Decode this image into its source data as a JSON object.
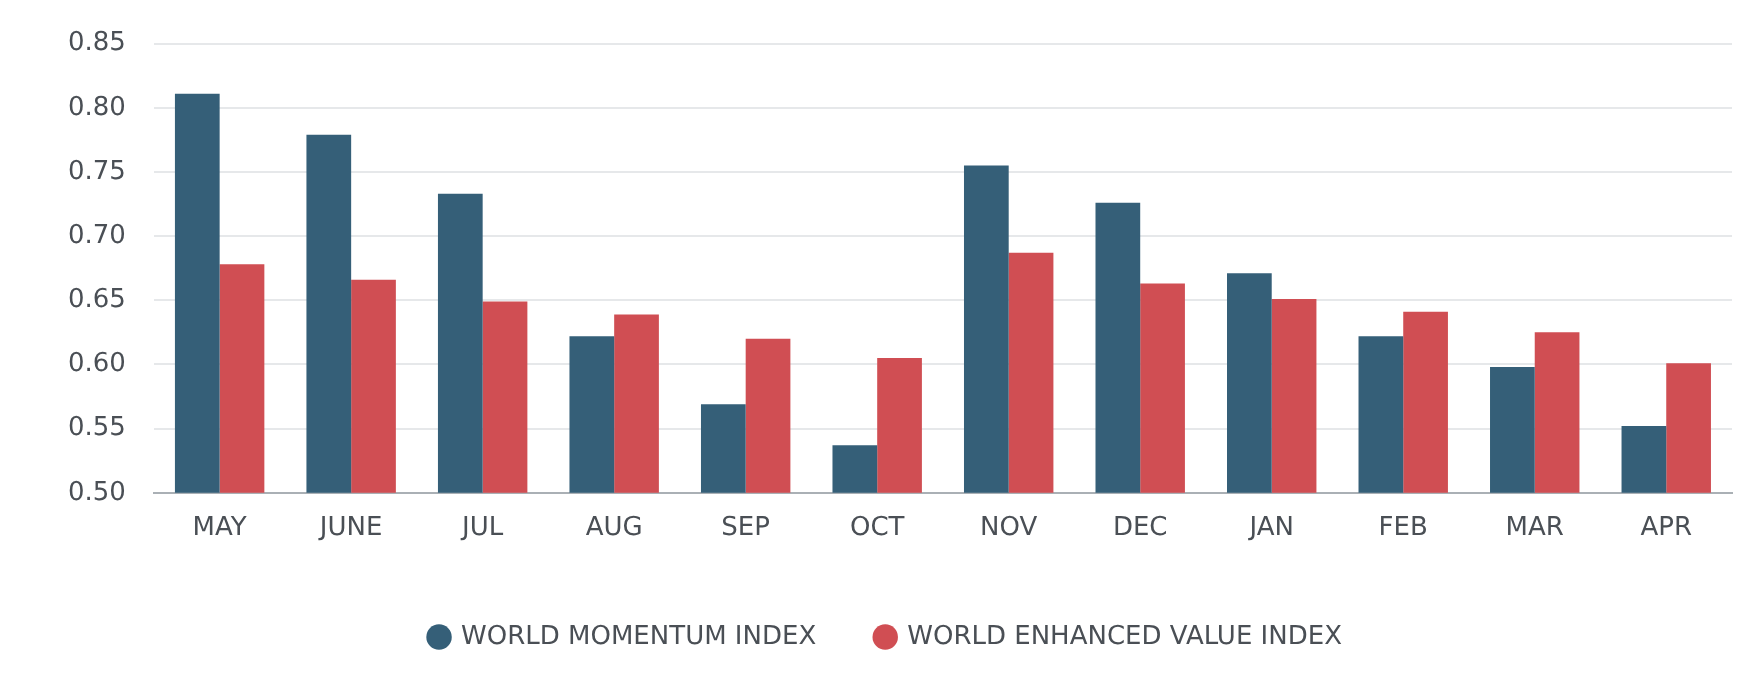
{
  "chart_data": {
    "type": "bar",
    "categories": [
      "MAY",
      "JUNE",
      "JUL",
      "AUG",
      "SEP",
      "OCT",
      "NOV",
      "DEC",
      "JAN",
      "FEB",
      "MAR",
      "APR"
    ],
    "series": [
      {
        "name": "WORLD MOMENTUM INDEX",
        "color": "#355f78",
        "values": [
          0.811,
          0.779,
          0.733,
          0.622,
          0.569,
          0.537,
          0.755,
          0.726,
          0.671,
          0.622,
          0.598,
          0.552
        ]
      },
      {
        "name": "WORLD ENHANCED VALUE INDEX",
        "color": "#d04e53",
        "values": [
          0.678,
          0.666,
          0.649,
          0.639,
          0.62,
          0.605,
          0.687,
          0.663,
          0.651,
          0.641,
          0.625,
          0.601
        ]
      }
    ],
    "ylim": [
      0.5,
      0.85
    ],
    "yticks": [
      {
        "value": 0.5,
        "label": "0.50"
      },
      0.55,
      {
        "value": 0.6,
        "label": "0.60"
      },
      0.65,
      {
        "value": 0.7,
        "label": "0.70"
      },
      0.75,
      {
        "value": 0.8,
        "label": "0.80"
      },
      0.85
    ],
    "grid": "y",
    "legend": "bottom"
  }
}
